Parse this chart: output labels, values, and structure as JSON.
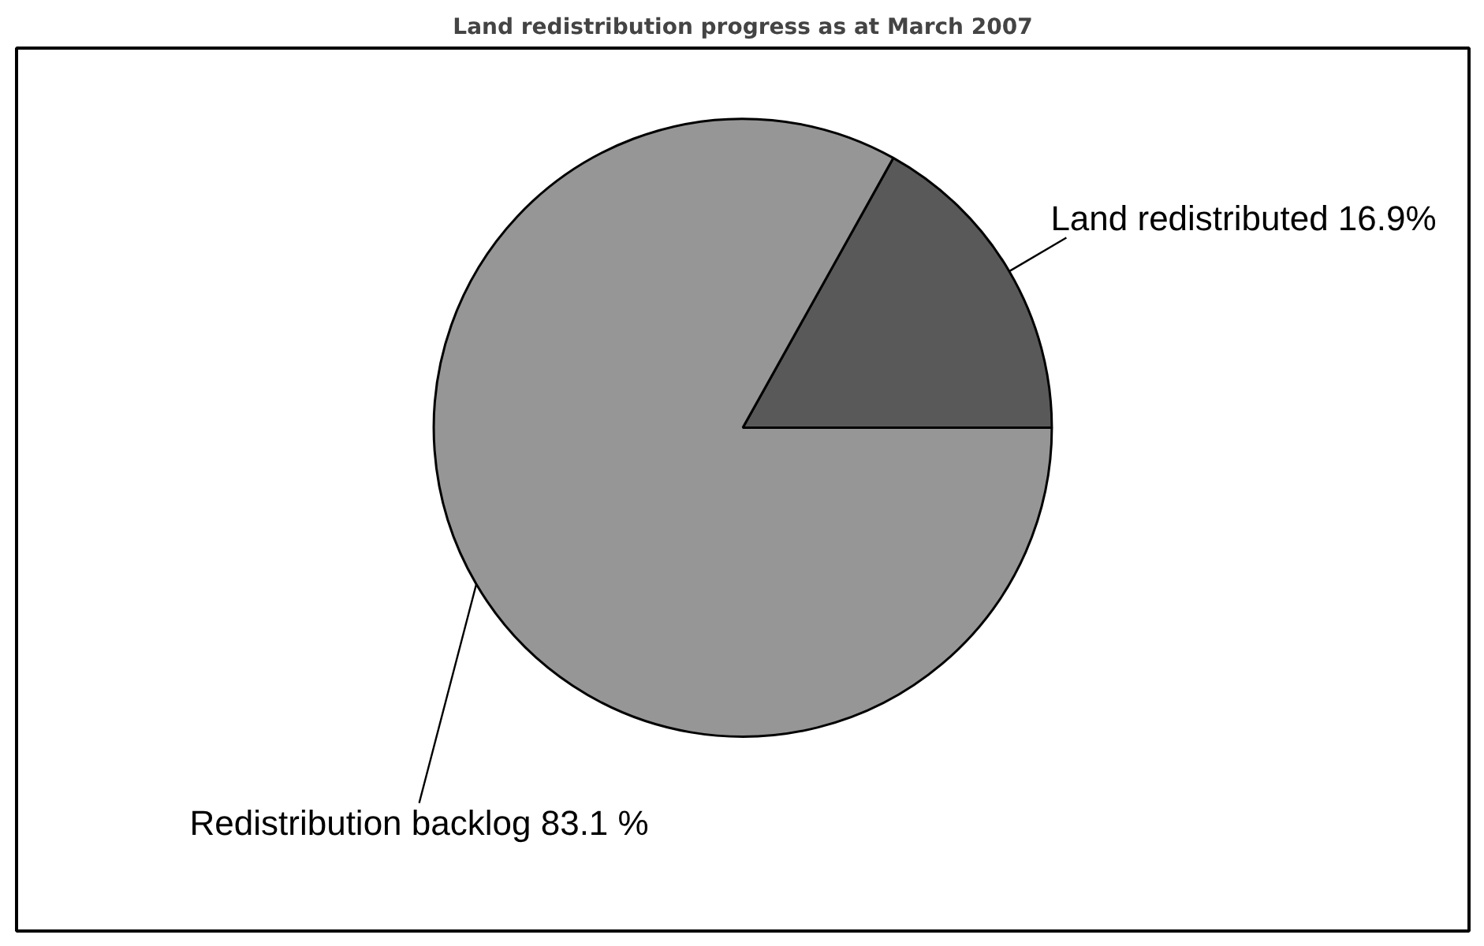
{
  "chart_data": {
    "type": "pie",
    "title": "Land redistribution progress as at March 2007",
    "categories": [
      "Land redistributed",
      "Redistribution backlog"
    ],
    "values": [
      16.9,
      83.1
    ],
    "colors": [
      "#595959",
      "#969696"
    ],
    "value_labels": [
      "16.9%",
      "83.1 %"
    ]
  }
}
